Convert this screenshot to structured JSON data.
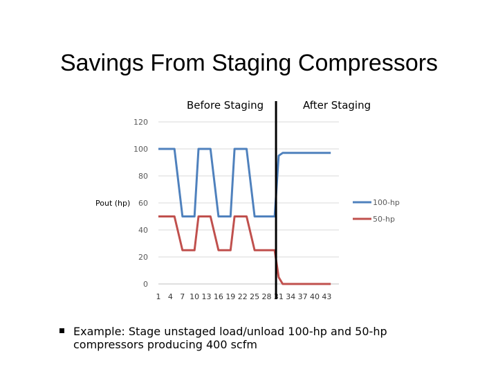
{
  "slide": {
    "title": "Savings From Staging Compressors",
    "bullet": "Example: Stage unstaged load/unload 100-hp and 50-hp compressors producing 400 scfm"
  },
  "colors": {
    "series_100hp": "#4f81bd",
    "series_50hp": "#c0504d",
    "divider": "#000000",
    "grid": "#d9d9d9",
    "axis_text": "#595959"
  },
  "chart_data": {
    "type": "line",
    "title": "",
    "xlabel": "",
    "ylabel": "Pout (hp)",
    "ylim": [
      0,
      120
    ],
    "yticks": [
      0,
      20,
      40,
      60,
      80,
      100,
      120
    ],
    "xlim": [
      1,
      45
    ],
    "xticks": [
      "1",
      "4",
      "7",
      "10",
      "13",
      "16",
      "19",
      "22",
      "25",
      "28",
      "31",
      "34",
      "37",
      "40",
      "43"
    ],
    "grid": true,
    "legend_position": "right",
    "annotations": [
      "Before Staging",
      "After Staging"
    ],
    "divider_x": 30,
    "series": [
      {
        "name": "100-hp",
        "x": [
          1,
          4,
          5,
          7,
          8,
          10,
          11,
          13,
          14,
          16,
          17,
          19,
          20,
          22,
          23,
          25,
          26,
          28,
          29,
          30,
          31,
          32,
          33,
          44
        ],
        "y": [
          100,
          100,
          100,
          50,
          50,
          50,
          100,
          100,
          100,
          50,
          50,
          50,
          100,
          100,
          100,
          50,
          50,
          50,
          50,
          50,
          95,
          97,
          97,
          97
        ]
      },
      {
        "name": "50-hp",
        "x": [
          1,
          4,
          5,
          7,
          8,
          10,
          11,
          13,
          14,
          16,
          17,
          19,
          20,
          22,
          23,
          25,
          26,
          28,
          29,
          30,
          31,
          32,
          33,
          44
        ],
        "y": [
          50,
          50,
          50,
          25,
          25,
          25,
          50,
          50,
          50,
          25,
          25,
          25,
          50,
          50,
          50,
          25,
          25,
          25,
          25,
          25,
          5,
          0,
          0,
          0
        ]
      }
    ]
  }
}
